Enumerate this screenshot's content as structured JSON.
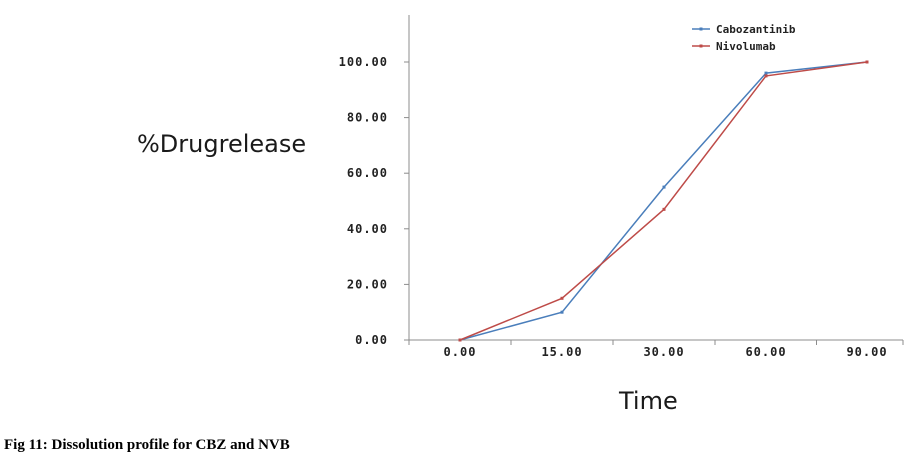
{
  "chart_data": {
    "type": "line",
    "title": "",
    "xlabel": "Time",
    "ylabel": "%Drugrelease",
    "categories": [
      "0.00",
      "15.00",
      "30.00",
      "60.00",
      "90.00"
    ],
    "y_ticks": [
      "0.00",
      "20.00",
      "40.00",
      "60.00",
      "80.00",
      "100.00"
    ],
    "ylim": [
      0,
      100
    ],
    "grid": false,
    "legend_position": "top-right",
    "series": [
      {
        "name": "Cabozantinib",
        "color": "#4a7ebb",
        "values": [
          0,
          10,
          55,
          96,
          100
        ]
      },
      {
        "name": "Nivolumab",
        "color": "#be4b48",
        "values": [
          0,
          15,
          47,
          95,
          100
        ]
      }
    ]
  },
  "caption": "Fig 11: Dissolution profile for CBZ and NVB"
}
